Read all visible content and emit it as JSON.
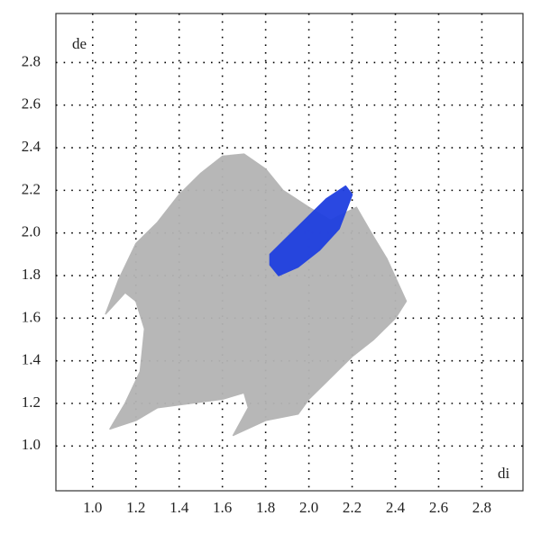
{
  "chart_data": {
    "type": "fingerprint",
    "x_label": "di",
    "y_label": "de",
    "xlim": [
      0.83,
      2.99
    ],
    "ylim": [
      0.79,
      3.03
    ],
    "xticks": [
      {
        "value": 1.0,
        "label": "1.0"
      },
      1.2,
      1.4,
      1.6,
      1.8,
      {
        "value": 2.0,
        "label": "2.0"
      },
      2.2,
      2.4,
      2.6,
      2.8
    ],
    "yticks": [
      {
        "value": 1.0,
        "label": "1.0"
      },
      1.2,
      1.4,
      1.6,
      1.8,
      {
        "value": 2.0,
        "label": "2.0"
      },
      2.2,
      2.4,
      2.6,
      2.8
    ],
    "grid": true,
    "series": [
      {
        "color": "#b4b4b4",
        "x": [
          1.06,
          1.12,
          1.2,
          1.3,
          1.4,
          1.5,
          1.6,
          1.7,
          1.8,
          1.88,
          2.0,
          2.1,
          2.22,
          2.3,
          2.36,
          2.45,
          2.4,
          2.3,
          2.2,
          2.08,
          2.0,
          1.95,
          1.8,
          1.65,
          1.72,
          1.7,
          1.6,
          1.45,
          1.3,
          1.2,
          1.08,
          1.15,
          1.22,
          1.24,
          1.2,
          1.15
        ],
        "y": [
          1.62,
          1.78,
          1.95,
          2.05,
          2.18,
          2.28,
          2.36,
          2.37,
          2.3,
          2.2,
          2.12,
          2.06,
          2.12,
          1.98,
          1.88,
          1.68,
          1.6,
          1.5,
          1.42,
          1.3,
          1.22,
          1.15,
          1.12,
          1.05,
          1.18,
          1.25,
          1.22,
          1.2,
          1.18,
          1.12,
          1.08,
          1.2,
          1.35,
          1.55,
          1.68,
          1.72
        ]
      },
      {
        "color": "#1f3fe0",
        "x": [
          1.82,
          1.86,
          1.95,
          2.05,
          2.14,
          2.2,
          2.17,
          2.08,
          1.98,
          1.88,
          1.82
        ],
        "y": [
          1.85,
          1.8,
          1.84,
          1.92,
          2.02,
          2.18,
          2.22,
          2.16,
          2.06,
          1.96,
          1.9
        ]
      }
    ]
  }
}
